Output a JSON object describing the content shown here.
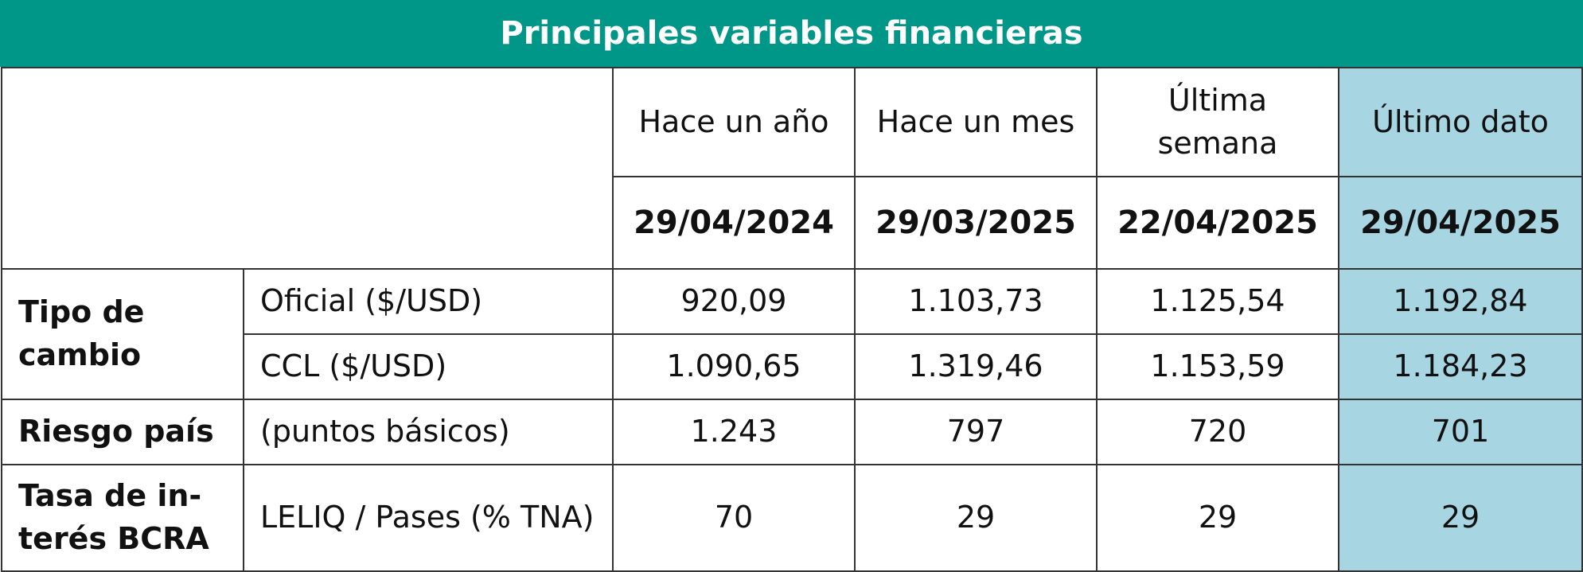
{
  "title": "Principales variables financieras",
  "columns": [
    {
      "label": "Hace un año",
      "date": "29/04/2024"
    },
    {
      "label": "Hace un mes",
      "date": "29/03/2025"
    },
    {
      "label": "Última semana",
      "date": "22/04/2025"
    },
    {
      "label": "Último dato",
      "date": "29/04/2025"
    }
  ],
  "rows": [
    {
      "category": "Tipo de cambio",
      "sub": "Oficial ($/USD)",
      "values": [
        "920,09",
        "1.103,73",
        "1.125,54",
        "1.192,84"
      ]
    },
    {
      "category": "",
      "sub": "CCL ($/USD)",
      "values": [
        "1.090,65",
        "1.319,46",
        "1.153,59",
        "1.184,23"
      ]
    },
    {
      "category": "Riesgo país",
      "sub": "(puntos básicos)",
      "values": [
        "1.243",
        "797",
        "720",
        "701"
      ]
    },
    {
      "category": "Tasa de in-terés BCRA",
      "sub": "LELIQ / Pases (% TNA)",
      "values": [
        "70",
        "29",
        "29",
        "29"
      ]
    }
  ],
  "colors": {
    "title_bg": "#009688",
    "highlight": "#a8d5e2",
    "border": "#333333"
  }
}
